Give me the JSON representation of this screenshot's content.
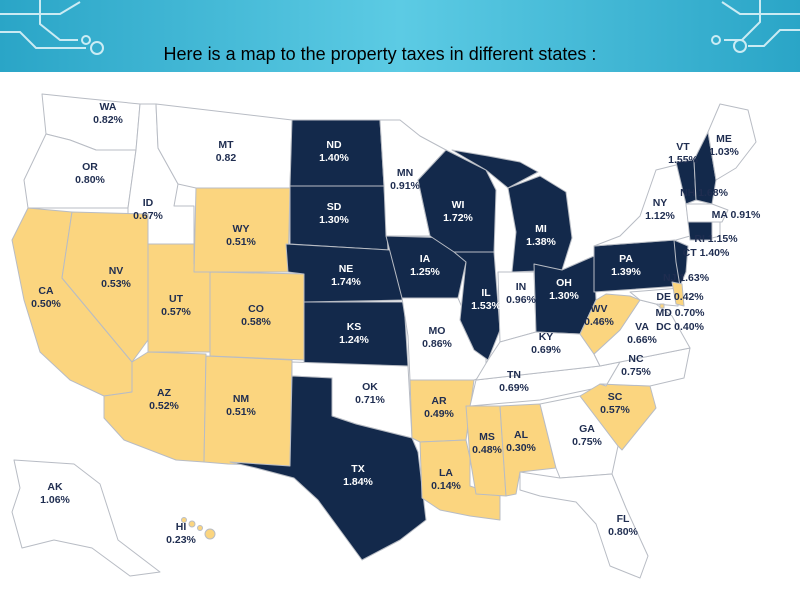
{
  "title": "Here is a map to the property taxes in different states :",
  "colors": {
    "header": "#3bb6d6",
    "high": "#13294b",
    "low": "#fbd57f",
    "mid": "#ffffff",
    "border": "#b8bcc4"
  },
  "legend_categories": {
    "high": "dark navy",
    "low": "light gold",
    "mid": "white"
  },
  "states": [
    {
      "code": "WA",
      "rate": "0.82%",
      "cat": "mid"
    },
    {
      "code": "OR",
      "rate": "0.80%",
      "cat": "mid"
    },
    {
      "code": "CA",
      "rate": "0.50%",
      "cat": "low"
    },
    {
      "code": "ID",
      "rate": "0.67%",
      "cat": "mid"
    },
    {
      "code": "NV",
      "rate": "0.53%",
      "cat": "low"
    },
    {
      "code": "MT",
      "rate": "0.82",
      "cat": "mid"
    },
    {
      "code": "WY",
      "rate": "0.51%",
      "cat": "low"
    },
    {
      "code": "UT",
      "rate": "0.57%",
      "cat": "low"
    },
    {
      "code": "CO",
      "rate": "0.58%",
      "cat": "low"
    },
    {
      "code": "AZ",
      "rate": "0.52%",
      "cat": "low"
    },
    {
      "code": "NM",
      "rate": "0.51%",
      "cat": "low"
    },
    {
      "code": "ND",
      "rate": "1.40%",
      "cat": "high"
    },
    {
      "code": "SD",
      "rate": "1.30%",
      "cat": "high"
    },
    {
      "code": "NE",
      "rate": "1.74%",
      "cat": "high"
    },
    {
      "code": "KS",
      "rate": "1.24%",
      "cat": "high"
    },
    {
      "code": "OK",
      "rate": "0.71%",
      "cat": "mid"
    },
    {
      "code": "TX",
      "rate": "1.84%",
      "cat": "high"
    },
    {
      "code": "MN",
      "rate": "0.91%",
      "cat": "mid"
    },
    {
      "code": "IA",
      "rate": "1.25%",
      "cat": "high"
    },
    {
      "code": "MO",
      "rate": "0.86%",
      "cat": "mid"
    },
    {
      "code": "AR",
      "rate": "0.49%",
      "cat": "low"
    },
    {
      "code": "LA",
      "rate": "0.14%",
      "cat": "low"
    },
    {
      "code": "WI",
      "rate": "1.72%",
      "cat": "high"
    },
    {
      "code": "IL",
      "rate": "1.53%",
      "cat": "high"
    },
    {
      "code": "MI",
      "rate": "1.38%",
      "cat": "high"
    },
    {
      "code": "IN",
      "rate": "0.96%",
      "cat": "mid"
    },
    {
      "code": "OH",
      "rate": "1.30%",
      "cat": "high"
    },
    {
      "code": "KY",
      "rate": "0.69%",
      "cat": "mid"
    },
    {
      "code": "TN",
      "rate": "0.69%",
      "cat": "mid"
    },
    {
      "code": "MS",
      "rate": "0.48%",
      "cat": "low"
    },
    {
      "code": "AL",
      "rate": "0.30%",
      "cat": "low"
    },
    {
      "code": "GA",
      "rate": "0.75%",
      "cat": "mid"
    },
    {
      "code": "FL",
      "rate": "0.80%",
      "cat": "mid"
    },
    {
      "code": "SC",
      "rate": "0.57%",
      "cat": "low"
    },
    {
      "code": "NC",
      "rate": "0.75%",
      "cat": "mid"
    },
    {
      "code": "VA",
      "rate": "0.66%",
      "cat": "mid"
    },
    {
      "code": "WV",
      "rate": "0.46%",
      "cat": "low"
    },
    {
      "code": "PA",
      "rate": "1.39%",
      "cat": "high"
    },
    {
      "code": "NY",
      "rate": "1.12%",
      "cat": "mid"
    },
    {
      "code": "VT",
      "rate": "1.55%",
      "cat": "high"
    },
    {
      "code": "ME",
      "rate": "1.03%",
      "cat": "mid"
    },
    {
      "code": "NH",
      "rate": "1.68%",
      "cat": "high"
    },
    {
      "code": "MA",
      "rate": "0.91%",
      "cat": "mid"
    },
    {
      "code": "RI",
      "rate": "1.15%",
      "cat": "mid"
    },
    {
      "code": "CT",
      "rate": "1.40%",
      "cat": "high"
    },
    {
      "code": "NJ",
      "rate": "1.63%",
      "cat": "high"
    },
    {
      "code": "DE",
      "rate": "0.42%",
      "cat": "low"
    },
    {
      "code": "MD",
      "rate": "0.70%",
      "cat": "mid"
    },
    {
      "code": "DC",
      "rate": "0.40%",
      "cat": "low"
    },
    {
      "code": "AK",
      "rate": "1.06%",
      "cat": "mid"
    },
    {
      "code": "HI",
      "rate": "0.23%",
      "cat": "low"
    }
  ]
}
